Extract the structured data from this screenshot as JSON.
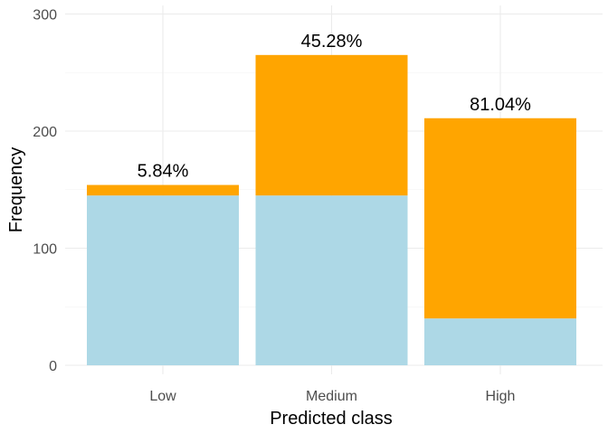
{
  "chart_data": {
    "type": "bar",
    "stacked": true,
    "title": "",
    "xlabel": "Predicted class",
    "ylabel": "Frequency",
    "categories": [
      "Low",
      "Medium",
      "High"
    ],
    "ylim": [
      0,
      300
    ],
    "yticks": [
      0,
      100,
      200,
      300
    ],
    "grid": true,
    "legend": "none",
    "series": [
      {
        "values": [
          145,
          145,
          40
        ],
        "color": "#add8e6"
      },
      {
        "values": [
          9,
          120,
          171
        ],
        "color": "#ffa500"
      }
    ],
    "data_labels": [
      "5.84%",
      "45.28%",
      "81.04%"
    ]
  }
}
